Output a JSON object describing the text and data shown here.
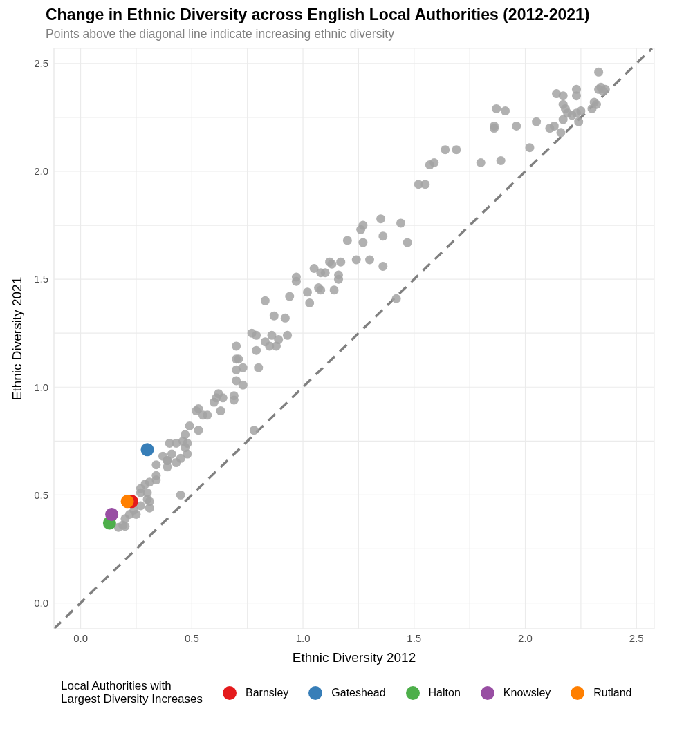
{
  "chart_data": {
    "type": "scatter",
    "title": "Change in Ethnic Diversity across English Local Authorities (2012-2021)",
    "subtitle": "Points above the diagonal line indicate increasing ethnic diversity",
    "xlabel": "Ethnic Diversity 2012",
    "ylabel": "Ethnic Diversity 2021",
    "legend_title": "Local Authorities with\nLargest Diversity Increases",
    "xlim": [
      -0.12,
      2.58
    ],
    "ylim": [
      -0.12,
      2.57
    ],
    "xticks": [
      {
        "value": 0,
        "label": "0.0"
      },
      {
        "value": 0.25,
        "label": null
      },
      {
        "value": 0.5,
        "label": "0.5"
      },
      {
        "value": 0.75,
        "label": null
      },
      {
        "value": 1,
        "label": "1.0"
      },
      {
        "value": 1.25,
        "label": null
      },
      {
        "value": 1.5,
        "label": "1.5"
      },
      {
        "value": 1.75,
        "label": null
      },
      {
        "value": 2,
        "label": "2.0"
      },
      {
        "value": 2.25,
        "label": null
      },
      {
        "value": 2.5,
        "label": "2.5"
      }
    ],
    "yticks": [
      {
        "value": 0,
        "label": "0.0"
      },
      {
        "value": 0.25,
        "label": null
      },
      {
        "value": 0.5,
        "label": "0.5"
      },
      {
        "value": 0.75,
        "label": null
      },
      {
        "value": 1,
        "label": "1.0"
      },
      {
        "value": 1.25,
        "label": null
      },
      {
        "value": 1.5,
        "label": "1.5"
      },
      {
        "value": 1.75,
        "label": null
      },
      {
        "value": 2,
        "label": "2.0"
      },
      {
        "value": 2.25,
        "label": null
      },
      {
        "value": 2.5,
        "label": "2.5"
      }
    ],
    "grid": true,
    "legend": "bottom",
    "marker": "circle",
    "series": [
      {
        "type": "line",
        "color": "#808080",
        "line_style": "dashed",
        "marker": "none",
        "x": [
          -0.12,
          2.57
        ],
        "values": [
          -0.12,
          2.57
        ]
      },
      {
        "color": "#a3a3a3",
        "x": [
          0.17,
          0.19,
          0.2,
          0.2,
          0.22,
          0.25,
          0.24,
          0.27,
          0.31,
          0.3,
          0.31,
          0.3,
          0.27,
          0.27,
          0.29,
          0.31,
          0.34,
          0.34,
          0.34,
          0.37,
          0.39,
          0.39,
          0.39,
          0.43,
          0.45,
          0.41,
          0.48,
          0.47,
          0.48,
          0.46,
          0.47,
          0.4,
          0.43,
          0.49,
          0.53,
          0.52,
          0.53,
          0.55,
          0.57,
          0.63,
          0.6,
          0.62,
          0.61,
          0.64,
          0.69,
          0.69,
          0.7,
          0.73,
          0.45,
          0.78,
          0.7,
          0.7,
          0.71,
          0.7,
          0.73,
          0.79,
          0.8,
          0.77,
          0.79,
          0.83,
          0.85,
          0.86,
          0.88,
          0.89,
          0.93,
          0.83,
          0.87,
          0.92,
          0.94,
          0.97,
          0.97,
          1.02,
          1.03,
          1.05,
          1.08,
          1.1,
          1.07,
          1.08,
          1.12,
          1.13,
          1.17,
          1.16,
          1.16,
          1.14,
          1.2,
          1.24,
          1.27,
          1.26,
          1.27,
          1.3,
          1.36,
          1.36,
          1.44,
          1.47,
          1.42,
          1.35,
          1.52,
          1.55,
          1.57,
          1.59,
          1.64,
          1.69,
          1.8,
          1.89,
          1.86,
          1.87,
          1.91,
          1.86,
          1.96,
          2.02,
          2.05,
          2.11,
          2.13,
          2.16,
          2.14,
          2.17,
          2.17,
          2.18,
          2.19,
          2.21,
          2.17,
          2.23,
          2.23,
          2.23,
          2.25,
          2.24,
          2.3,
          2.31,
          2.32,
          2.33,
          2.33,
          2.34,
          2.36,
          2.35
        ],
        "values": [
          0.35,
          0.36,
          0.355,
          0.39,
          0.41,
          0.41,
          0.43,
          0.45,
          0.44,
          0.48,
          0.47,
          0.51,
          0.51,
          0.53,
          0.55,
          0.56,
          0.57,
          0.59,
          0.64,
          0.68,
          0.66,
          0.63,
          0.66,
          0.65,
          0.67,
          0.69,
          0.69,
          0.72,
          0.74,
          0.75,
          0.78,
          0.74,
          0.74,
          0.82,
          0.8,
          0.89,
          0.9,
          0.87,
          0.87,
          0.89,
          0.93,
          0.97,
          0.95,
          0.95,
          0.96,
          0.94,
          1.03,
          1.01,
          0.5,
          0.8,
          1.19,
          1.13,
          1.13,
          1.08,
          1.09,
          1.17,
          1.09,
          1.25,
          1.24,
          1.21,
          1.19,
          1.24,
          1.19,
          1.22,
          1.24,
          1.4,
          1.33,
          1.32,
          1.42,
          1.51,
          1.49,
          1.44,
          1.39,
          1.55,
          1.53,
          1.53,
          1.46,
          1.45,
          1.58,
          1.57,
          1.58,
          1.52,
          1.5,
          1.45,
          1.68,
          1.59,
          1.67,
          1.73,
          1.75,
          1.59,
          1.7,
          1.56,
          1.76,
          1.67,
          1.41,
          1.78,
          1.94,
          1.94,
          2.03,
          2.04,
          2.1,
          2.1,
          2.04,
          2.05,
          2.2,
          2.29,
          2.28,
          2.21,
          2.21,
          2.11,
          2.23,
          2.2,
          2.21,
          2.18,
          2.36,
          2.35,
          2.31,
          2.29,
          2.27,
          2.26,
          2.24,
          2.38,
          2.35,
          2.27,
          2.28,
          2.23,
          2.29,
          2.32,
          2.31,
          2.46,
          2.38,
          2.39,
          2.38,
          2.37
        ]
      },
      {
        "name": "Barnsley",
        "color": "#e41a1c",
        "x": [
          0.23
        ],
        "values": [
          0.47
        ]
      },
      {
        "name": "Gateshead",
        "color": "#377eb8",
        "x": [
          0.3
        ],
        "values": [
          0.71
        ]
      },
      {
        "name": "Halton",
        "color": "#4daf4a",
        "x": [
          0.13
        ],
        "values": [
          0.37
        ]
      },
      {
        "name": "Knowsley",
        "color": "#984ea3",
        "x": [
          0.14
        ],
        "values": [
          0.41
        ]
      },
      {
        "name": "Rutland",
        "color": "#ff7f00",
        "x": [
          0.21
        ],
        "values": [
          0.47
        ]
      }
    ]
  }
}
